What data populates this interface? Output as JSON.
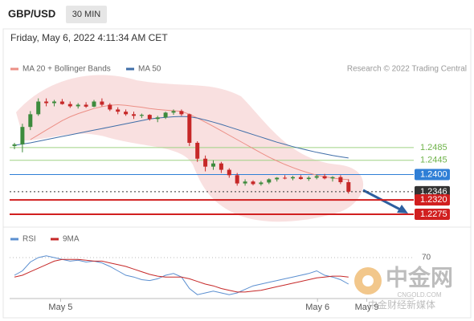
{
  "header": {
    "symbol": "GBP/USD",
    "timeframe": "30 MIN",
    "timestamp": "Friday, May 6, 2022 4:11:34 AM CET",
    "credit": "Research © 2022 Trading Central"
  },
  "watermark": {
    "name": "中金网",
    "site": "CNGOLD.COM",
    "tagline": "中金财经新媒体"
  },
  "chart_data": [
    {
      "type": "candlestick",
      "ylim": [
        1.2237,
        1.2692
      ],
      "up_color": "#3d8b3d",
      "down_color": "#c62828",
      "candles": [
        [
          1.249,
          1.25,
          1.248,
          1.2495
        ],
        [
          1.2495,
          1.256,
          1.247,
          1.255
        ],
        [
          1.255,
          1.26,
          1.254,
          1.259
        ],
        [
          1.259,
          1.264,
          1.2585,
          1.263
        ],
        [
          1.263,
          1.264,
          1.2615,
          1.2625
        ],
        [
          1.2625,
          1.2635,
          1.2615,
          1.263
        ],
        [
          1.263,
          1.2638,
          1.262,
          1.2622
        ],
        [
          1.2622,
          1.263,
          1.261,
          1.2615
        ],
        [
          1.2615,
          1.2625,
          1.2608,
          1.262
        ],
        [
          1.262,
          1.2628,
          1.261,
          1.2614
        ],
        [
          1.2614,
          1.2635,
          1.2612,
          1.263
        ],
        [
          1.263,
          1.264,
          1.2615,
          1.262
        ],
        [
          1.262,
          1.2625,
          1.26,
          1.2605
        ],
        [
          1.2605,
          1.2612,
          1.259,
          1.2598
        ],
        [
          1.2598,
          1.2605,
          1.2585,
          1.259
        ],
        [
          1.259,
          1.2598,
          1.2575,
          1.2585
        ],
        [
          1.2585,
          1.2592,
          1.2578,
          1.2588
        ],
        [
          1.2588,
          1.259,
          1.257,
          1.2575
        ],
        [
          1.2575,
          1.2585,
          1.2565,
          1.258
        ],
        [
          1.258,
          1.2598,
          1.2575,
          1.2595
        ],
        [
          1.2595,
          1.2605,
          1.2588,
          1.26
        ],
        [
          1.26,
          1.2605,
          1.2585,
          1.259
        ],
        [
          1.259,
          1.2592,
          1.249,
          1.25
        ],
        [
          1.25,
          1.2505,
          1.244,
          1.245
        ],
        [
          1.245,
          1.246,
          1.241,
          1.2425
        ],
        [
          1.2425,
          1.2445,
          1.2415,
          1.2435
        ],
        [
          1.2435,
          1.244,
          1.2405,
          1.2415
        ],
        [
          1.2415,
          1.242,
          1.239,
          1.2398
        ],
        [
          1.2398,
          1.2405,
          1.2365,
          1.2372
        ],
        [
          1.2372,
          1.2385,
          1.2365,
          1.2378
        ],
        [
          1.2378,
          1.2382,
          1.2366,
          1.237
        ],
        [
          1.237,
          1.238,
          1.2365,
          1.2375
        ],
        [
          1.2375,
          1.2388,
          1.237,
          1.2385
        ],
        [
          1.2385,
          1.2392,
          1.2378,
          1.239
        ],
        [
          1.239,
          1.2398,
          1.2385,
          1.2388
        ],
        [
          1.2388,
          1.2396,
          1.2382,
          1.2392
        ],
        [
          1.2392,
          1.2398,
          1.2384,
          1.2386
        ],
        [
          1.2386,
          1.2395,
          1.238,
          1.239
        ],
        [
          1.239,
          1.24,
          1.2385,
          1.2395
        ],
        [
          1.2395,
          1.2402,
          1.2385,
          1.2388
        ],
        [
          1.2388,
          1.2395,
          1.2378,
          1.2392
        ],
        [
          1.2392,
          1.2398,
          1.237,
          1.2376
        ],
        [
          1.2376,
          1.2385,
          1.234,
          1.2346
        ]
      ],
      "series": [
        {
          "name": "MA 20 + Bollinger Bands",
          "color": "#ec8f86",
          "values": [
            null,
            null,
            1.251,
            1.2525,
            1.254,
            1.2555,
            1.257,
            1.2582,
            1.2592,
            1.26,
            1.2608,
            1.2614,
            1.2618,
            1.262,
            1.2618,
            1.2615,
            1.2612,
            1.2608,
            1.2605,
            1.2603,
            1.2601,
            1.2599,
            1.259,
            1.2578,
            1.2565,
            1.2552,
            1.2538,
            1.2524,
            1.251,
            1.2496,
            1.2482,
            1.2468,
            1.2455,
            1.2443,
            1.2432,
            1.2422,
            1.2413,
            1.2405,
            1.2398,
            1.2393,
            1.2389,
            1.2386,
            1.2384
          ]
        },
        {
          "name": "MA 50",
          "color": "#3f6ea8",
          "values": [
            1.2492,
            1.2496,
            1.25,
            1.2505,
            1.251,
            1.2515,
            1.252,
            1.2525,
            1.253,
            1.2535,
            1.254,
            1.2545,
            1.255,
            1.2555,
            1.256,
            1.2565,
            1.257,
            1.2575,
            1.2578,
            1.258,
            1.2582,
            1.2583,
            1.2582,
            1.2578,
            1.2572,
            1.2565,
            1.2558,
            1.255,
            1.2542,
            1.2534,
            1.2526,
            1.2518,
            1.251,
            1.2502,
            1.2495,
            1.2488,
            1.2482,
            1.2476,
            1.247,
            1.2465,
            1.246,
            1.2456,
            1.2452
          ]
        }
      ],
      "levels": [
        {
          "value": 1.2485,
          "label": "1.2485",
          "color": "#9fd283",
          "style": "text"
        },
        {
          "value": 1.2445,
          "label": "1.2445",
          "color": "#9fd283",
          "style": "text"
        },
        {
          "value": 1.24,
          "label": "1.2400",
          "color": "#2f7fd6",
          "style": "box"
        },
        {
          "value": 1.2346,
          "label": "1.2346",
          "color": "#333333",
          "style": "box"
        },
        {
          "value": 1.232,
          "label": "1.2320",
          "color": "#d11f1f",
          "style": "box"
        },
        {
          "value": 1.2275,
          "label": "1.2275",
          "color": "#d11f1f",
          "style": "box"
        }
      ]
    },
    {
      "type": "line",
      "ylim": [
        0,
        100
      ],
      "yticks": [
        70
      ],
      "xticks": [
        {
          "value": 5.8,
          "label": "May 5"
        },
        {
          "value": 38.1,
          "label": "May 6"
        },
        {
          "value": 44.3,
          "label": "May 9"
        }
      ],
      "series": [
        {
          "name": "RSI",
          "color": "#5b8fd0",
          "values": [
            50,
            55,
            65,
            70,
            72,
            70,
            68,
            66,
            67,
            65,
            66,
            64,
            60,
            55,
            50,
            48,
            45,
            44,
            46,
            50,
            52,
            48,
            35,
            28,
            30,
            32,
            30,
            28,
            30,
            34,
            38,
            40,
            42,
            44,
            46,
            48,
            50,
            52,
            55,
            50,
            48,
            45,
            40
          ]
        },
        {
          "name": "9MA",
          "color": "#c62828",
          "values": [
            48,
            50,
            54,
            58,
            62,
            66,
            68,
            68,
            68,
            67,
            66,
            66,
            64,
            62,
            60,
            57,
            54,
            51,
            49,
            48,
            48,
            48,
            46,
            43,
            40,
            38,
            35,
            33,
            31,
            31,
            32,
            33,
            35,
            37,
            39,
            41,
            43,
            45,
            47,
            48,
            49,
            49,
            48
          ]
        }
      ]
    }
  ]
}
